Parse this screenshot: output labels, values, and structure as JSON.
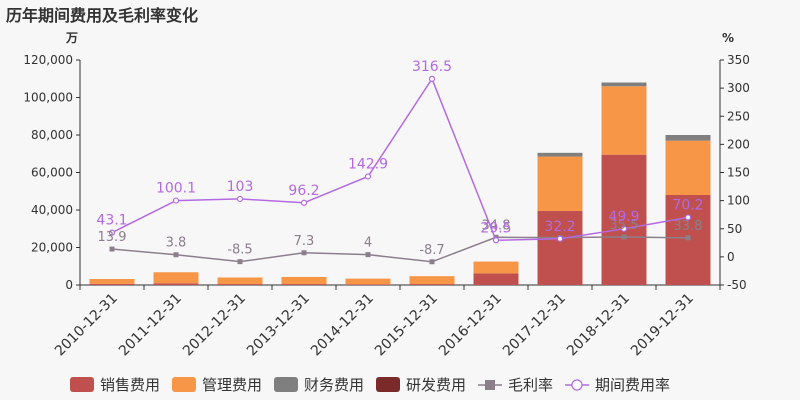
{
  "title": "历年期间费用及毛利率变化",
  "chart_data": {
    "type": "bar",
    "title": "历年期间费用及毛利率变化",
    "left_unit": "万",
    "right_unit": "%",
    "categories": [
      "2010-12-31",
      "2011-12-31",
      "2012-12-31",
      "2013-12-31",
      "2014-12-31",
      "2015-12-31",
      "2016-12-31",
      "2017-12-31",
      "2018-12-31",
      "2019-12-31"
    ],
    "left_axis": {
      "min": 0,
      "max": 120000,
      "ticks": [
        "0",
        "20,000",
        "40,000",
        "60,000",
        "80,000",
        "100,000",
        "120,000"
      ]
    },
    "right_axis": {
      "min": -50,
      "max": 350,
      "ticks": [
        "-50",
        "0",
        "50",
        "100",
        "150",
        "200",
        "250",
        "300",
        "350"
      ]
    },
    "stacked_series": [
      {
        "name": "销售费用",
        "color": "#c0504d",
        "values": [
          600,
          900,
          500,
          500,
          400,
          500,
          6200,
          39500,
          69500,
          48000
        ]
      },
      {
        "name": "管理费用",
        "color": "#f79646",
        "values": [
          2600,
          5900,
          3500,
          3800,
          3000,
          4200,
          6300,
          29000,
          36500,
          29000
        ]
      },
      {
        "name": "财务费用",
        "color": "#7f7f7f",
        "values": [
          0,
          0,
          0,
          0,
          0,
          0,
          0,
          2000,
          2000,
          3000
        ]
      },
      {
        "name": "研发费用",
        "color": "#7b2a2a",
        "values": [
          0,
          0,
          0,
          0,
          0,
          0,
          0,
          0,
          0,
          0
        ]
      }
    ],
    "line_series": [
      {
        "name": "毛利率",
        "color": "#8c7f8c",
        "marker": "square",
        "values": [
          13.9,
          3.8,
          -8.5,
          7.3,
          4,
          -8.7,
          34.8,
          34.3,
          35.5,
          33.8
        ],
        "labels": [
          "13.9",
          "3.8",
          "-8.5",
          "7.3",
          "4",
          "-8.7",
          "34.8",
          "",
          "35.5",
          "33.8"
        ]
      },
      {
        "name": "期间费用率",
        "color": "#b36ae2",
        "marker": "circle",
        "values": [
          43.1,
          100.1,
          103,
          96.2,
          142.9,
          316.5,
          29.5,
          32.2,
          49.9,
          70.2
        ],
        "labels": [
          "43.1",
          "100.1",
          "103",
          "96.2",
          "142.9",
          "316.5",
          "29.5",
          "32.2",
          "49.9",
          "70.2"
        ]
      }
    ],
    "legend": [
      "销售费用",
      "管理费用",
      "财务费用",
      "研发费用",
      "毛利率",
      "期间费用率"
    ],
    "legend_position": "bottom",
    "grid": false
  }
}
